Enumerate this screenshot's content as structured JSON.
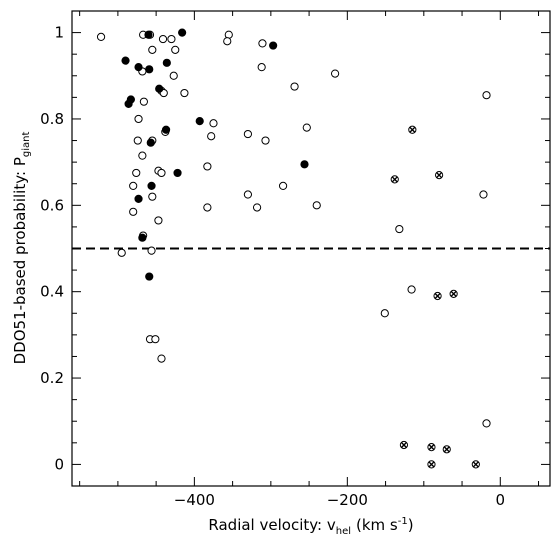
{
  "chart_data": {
    "type": "scatter",
    "xlabel": "Radial velocity: v",
    "xlabel_sub": "hel",
    "xlabel_unit": "(km s",
    "xlabel_unit_sup": "-1",
    "xlabel_close": ")",
    "ylabel": "DDO51-based probability: P",
    "ylabel_sub": "giant",
    "xlim": [
      -560,
      65
    ],
    "ylim": [
      -0.05,
      1.05
    ],
    "x_ticks": [
      -400,
      -200,
      0
    ],
    "x_tick_labels": [
      "−400",
      "−200",
      "0"
    ],
    "x_minor_step": 50,
    "y_ticks": [
      0,
      0.2,
      0.4,
      0.6,
      0.8,
      1
    ],
    "y_tick_labels": [
      "0",
      "0.2",
      "0.4",
      "0.6",
      "0.8",
      "1"
    ],
    "y_minor_step": 0.05,
    "grid": false,
    "reference_line": {
      "y": 0.5,
      "style": "dashed"
    },
    "series": [
      {
        "marker": "open-circle",
        "points": [
          [
            -522,
            0.99
          ],
          [
            -467,
            0.995
          ],
          [
            -458,
            0.995
          ],
          [
            -468,
            0.91
          ],
          [
            -455,
            0.96
          ],
          [
            -441,
            0.985
          ],
          [
            -430,
            0.985
          ],
          [
            -425,
            0.96
          ],
          [
            -427,
            0.9
          ],
          [
            -413,
            0.86
          ],
          [
            -443,
            0.865
          ],
          [
            -466,
            0.84
          ],
          [
            -440,
            0.86
          ],
          [
            -355,
            0.995
          ],
          [
            -357,
            0.98
          ],
          [
            -311,
            0.975
          ],
          [
            -312,
            0.92
          ],
          [
            -269,
            0.875
          ],
          [
            -216,
            0.905
          ],
          [
            -18,
            0.855
          ],
          [
            -473,
            0.8
          ],
          [
            -438,
            0.77
          ],
          [
            -455,
            0.75
          ],
          [
            -474,
            0.75
          ],
          [
            -375,
            0.79
          ],
          [
            -378,
            0.76
          ],
          [
            -330,
            0.765
          ],
          [
            -307,
            0.75
          ],
          [
            -253,
            0.78
          ],
          [
            -468,
            0.715
          ],
          [
            -476,
            0.675
          ],
          [
            -447,
            0.68
          ],
          [
            -443,
            0.675
          ],
          [
            -480,
            0.645
          ],
          [
            -383,
            0.69
          ],
          [
            -455,
            0.62
          ],
          [
            -480,
            0.585
          ],
          [
            -447,
            0.565
          ],
          [
            -383,
            0.595
          ],
          [
            -330,
            0.625
          ],
          [
            -318,
            0.595
          ],
          [
            -284,
            0.645
          ],
          [
            -240,
            0.6
          ],
          [
            -22,
            0.625
          ],
          [
            -132,
            0.545
          ],
          [
            -495,
            0.49
          ],
          [
            -467,
            0.53
          ],
          [
            -456,
            0.495
          ],
          [
            -116,
            0.405
          ],
          [
            -151,
            0.35
          ],
          [
            -458,
            0.29
          ],
          [
            -451,
            0.29
          ],
          [
            -443,
            0.245
          ],
          [
            -18,
            0.095
          ]
        ]
      },
      {
        "marker": "filled-circle",
        "points": [
          [
            -416,
            1.0
          ],
          [
            -460,
            0.995
          ],
          [
            -297,
            0.97
          ],
          [
            -490,
            0.935
          ],
          [
            -436,
            0.93
          ],
          [
            -473,
            0.92
          ],
          [
            -459,
            0.915
          ],
          [
            -483,
            0.845
          ],
          [
            -486,
            0.835
          ],
          [
            -446,
            0.87
          ],
          [
            -393,
            0.795
          ],
          [
            -437,
            0.775
          ],
          [
            -457,
            0.745
          ],
          [
            -256,
            0.695
          ],
          [
            -456,
            0.645
          ],
          [
            -473,
            0.615
          ],
          [
            -422,
            0.675
          ],
          [
            -468,
            0.525
          ],
          [
            -459,
            0.435
          ]
        ]
      },
      {
        "marker": "circled-x",
        "points": [
          [
            -115,
            0.775
          ],
          [
            -138,
            0.66
          ],
          [
            -80,
            0.67
          ],
          [
            -82,
            0.39
          ],
          [
            -61,
            0.395
          ],
          [
            -126,
            0.045
          ],
          [
            -90,
            0.04
          ],
          [
            -70,
            0.035
          ],
          [
            -90,
            0.0
          ],
          [
            -32,
            0.0
          ]
        ]
      }
    ]
  }
}
